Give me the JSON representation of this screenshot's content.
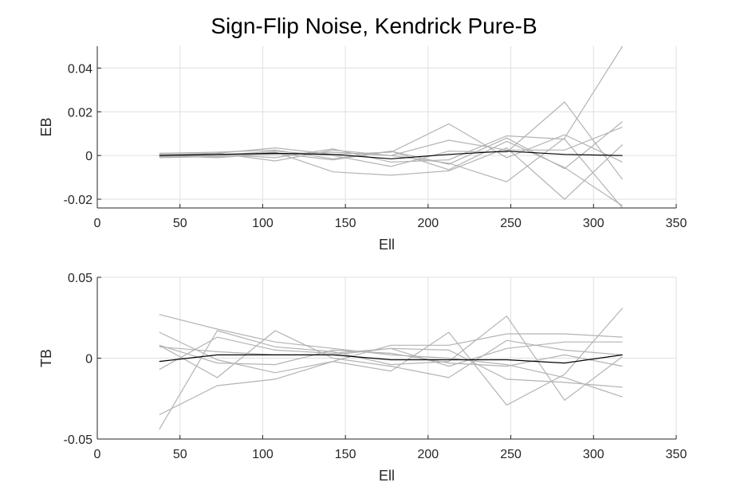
{
  "title": "Sign-Flip Noise, Kendrick Pure-B",
  "chart_data": [
    {
      "type": "line",
      "xlabel": "Ell",
      "ylabel": "EB",
      "xlim": [
        0,
        350
      ],
      "ylim": [
        -0.024,
        0.05
      ],
      "xticks": [
        0,
        50,
        100,
        150,
        200,
        250,
        300,
        350
      ],
      "xtick_labels": [
        "0",
        "50",
        "100",
        "150",
        "200",
        "250",
        "300",
        "350"
      ],
      "yticks": [
        -0.02,
        0,
        0.02,
        0.04
      ],
      "ytick_labels": [
        "-0.02",
        "0",
        "0.02",
        "0.04"
      ],
      "grid": true,
      "x": [
        37.5,
        72.5,
        107.5,
        142.5,
        177.5,
        212.5,
        247.5,
        282.5,
        317.5
      ],
      "series": [
        {
          "role": "realization",
          "color": "#b3b3b3",
          "values": [
            0.0005,
            0.001,
            0.0035,
            0.0005,
            0.0015,
            0.0145,
            -0.001,
            0.0095,
            -0.003
          ]
        },
        {
          "role": "realization",
          "color": "#b3b3b3",
          "values": [
            -0.0005,
            0.0005,
            -0.001,
            0.003,
            -0.003,
            -0.002,
            0.009,
            0.0075,
            -0.024
          ]
        },
        {
          "role": "realization",
          "color": "#b3b3b3",
          "values": [
            0.001,
            0.0015,
            0.0025,
            -0.0015,
            0.002,
            -0.004,
            0.008,
            -0.006,
            0.0155
          ]
        },
        {
          "role": "realization",
          "color": "#b3b3b3",
          "values": [
            -0.001,
            -0.0005,
            0.0015,
            -0.0075,
            -0.009,
            -0.007,
            0.0035,
            -0.02,
            0.005
          ]
        },
        {
          "role": "realization",
          "color": "#b3b3b3",
          "values": [
            0.0,
            0.001,
            -0.0025,
            0.0025,
            0.0,
            0.007,
            0.0025,
            0.0025,
            0.013
          ]
        },
        {
          "role": "realization",
          "color": "#b3b3b3",
          "values": [
            0.0005,
            0.0,
            0.0005,
            0.0015,
            0.0,
            -0.0035,
            -0.012,
            0.008,
            0.05
          ]
        },
        {
          "role": "realization",
          "color": "#b3b3b3",
          "values": [
            -0.0005,
            0.0,
            0.002,
            0.0,
            -0.005,
            0.002,
            0.0015,
            0.0245,
            -0.011
          ]
        },
        {
          "role": "realization",
          "color": "#b3b3b3",
          "values": [
            0.0,
            -0.001,
            0.001,
            -0.002,
            0.002,
            -0.0065,
            0.0065,
            -0.0055,
            -0.023
          ]
        },
        {
          "role": "mean",
          "color": "#000000",
          "values": [
            0.0,
            0.0005,
            0.001,
            0.0005,
            -0.0015,
            0.0005,
            0.002,
            0.0005,
            0.0
          ]
        }
      ]
    },
    {
      "type": "line",
      "xlabel": "Ell",
      "ylabel": "TB",
      "xlim": [
        0,
        350
      ],
      "ylim": [
        -0.05,
        0.05
      ],
      "xticks": [
        0,
        50,
        100,
        150,
        200,
        250,
        300,
        350
      ],
      "xtick_labels": [
        "0",
        "50",
        "100",
        "150",
        "200",
        "250",
        "300",
        "350"
      ],
      "yticks": [
        -0.05,
        0,
        0.05
      ],
      "ytick_labels": [
        "-0.05",
        "0",
        "0.05"
      ],
      "grid": true,
      "x": [
        37.5,
        72.5,
        107.5,
        142.5,
        177.5,
        212.5,
        247.5,
        282.5,
        317.5
      ],
      "series": [
        {
          "role": "realization",
          "color": "#b3b3b3",
          "values": [
            0.027,
            0.018,
            0.01,
            0.006,
            0.002,
            0.0,
            -0.004,
            -0.012,
            -0.024
          ]
        },
        {
          "role": "realization",
          "color": "#b3b3b3",
          "values": [
            0.016,
            -0.001,
            -0.009,
            -0.002,
            -0.008,
            0.016,
            -0.029,
            -0.01,
            0.031
          ]
        },
        {
          "role": "realization",
          "color": "#b3b3b3",
          "values": [
            -0.044,
            0.017,
            0.007,
            0.004,
            -0.004,
            -0.002,
            0.026,
            -0.026,
            0.001
          ]
        },
        {
          "role": "realization",
          "color": "#b3b3b3",
          "values": [
            -0.035,
            -0.017,
            -0.013,
            -0.002,
            0.008,
            0.008,
            0.015,
            0.015,
            0.013
          ]
        },
        {
          "role": "realization",
          "color": "#b3b3b3",
          "values": [
            0.008,
            -0.012,
            0.017,
            0.0,
            -0.005,
            -0.012,
            0.011,
            0.005,
            0.002
          ]
        },
        {
          "role": "realization",
          "color": "#b3b3b3",
          "values": [
            -0.007,
            0.013,
            0.005,
            0.003,
            0.006,
            0.005,
            -0.013,
            -0.015,
            -0.018
          ]
        },
        {
          "role": "realization",
          "color": "#b3b3b3",
          "values": [
            0.007,
            0.004,
            0.002,
            0.002,
            0.006,
            -0.005,
            0.006,
            0.01,
            0.01
          ]
        },
        {
          "role": "realization",
          "color": "#b3b3b3",
          "values": [
            0.008,
            -0.003,
            -0.004,
            0.005,
            0.003,
            -0.003,
            -0.005,
            0.002,
            -0.005
          ]
        },
        {
          "role": "mean",
          "color": "#000000",
          "values": [
            -0.002,
            0.002,
            0.002,
            0.002,
            -0.001,
            -0.001,
            -0.001,
            -0.003,
            0.002
          ]
        }
      ]
    }
  ]
}
